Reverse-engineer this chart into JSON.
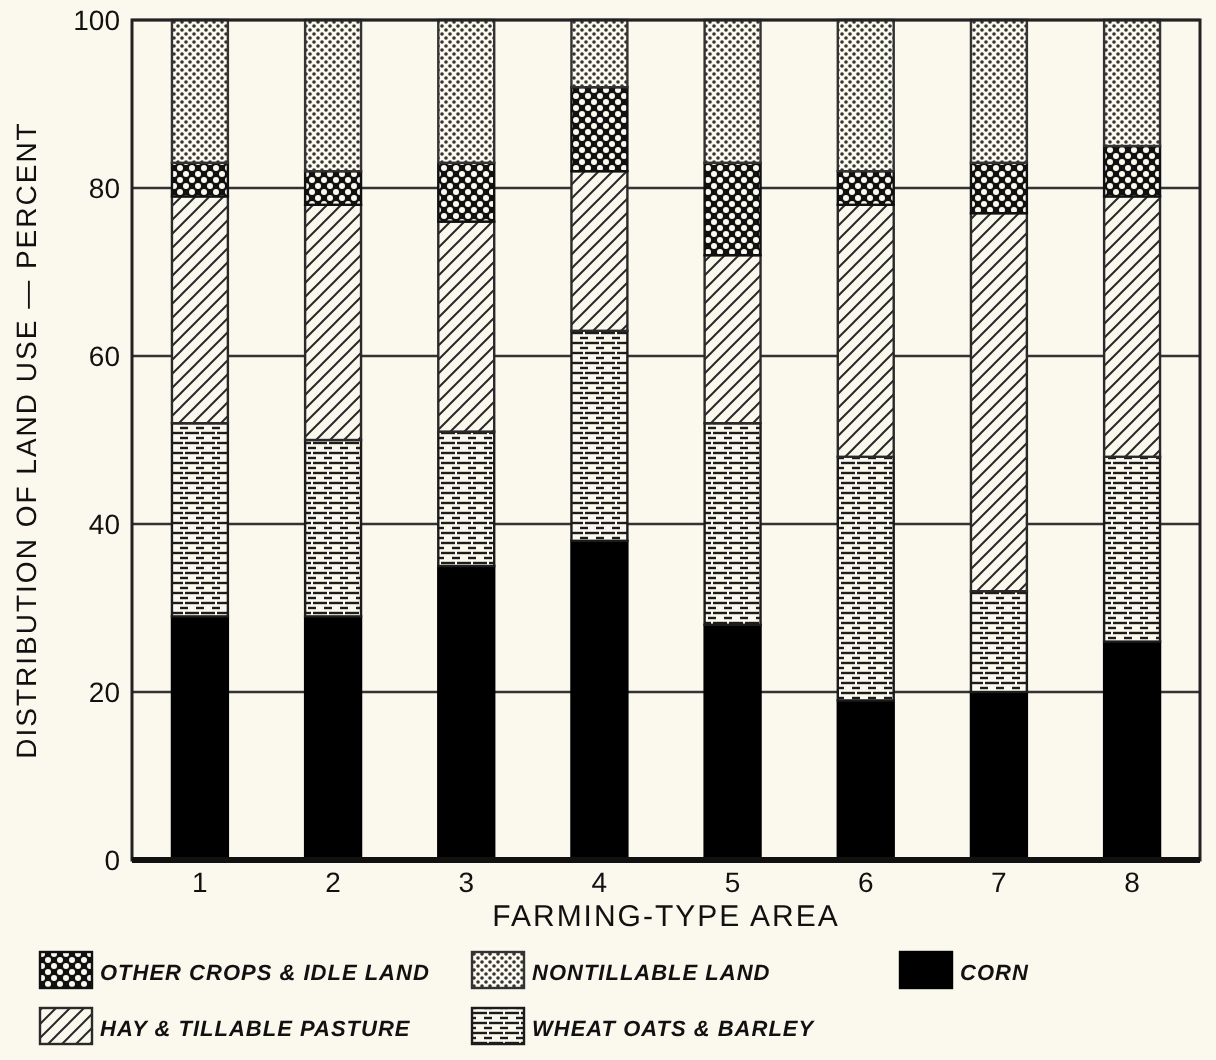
{
  "chart_data": {
    "type": "bar",
    "stacked": true,
    "xlabel": "FARMING-TYPE AREA",
    "ylabel": "DISTRIBUTION OF LAND USE — PERCENT",
    "categories": [
      "1",
      "2",
      "3",
      "4",
      "5",
      "6",
      "7",
      "8"
    ],
    "series": [
      {
        "name": "CORN",
        "color": "#000000",
        "values": [
          29,
          29,
          35,
          38,
          28,
          19,
          20,
          26
        ]
      },
      {
        "name": "WHEAT OATS & BARLEY",
        "color": "#1c1c1c",
        "values": [
          23,
          21,
          16,
          25,
          24,
          29,
          12,
          22
        ]
      },
      {
        "name": "HAY & TILLABLE PASTURE",
        "color": "#2a2a2a",
        "values": [
          27,
          28,
          25,
          19,
          20,
          30,
          45,
          31
        ]
      },
      {
        "name": "OTHER CROPS & IDLE LAND",
        "color": "#111111",
        "values": [
          4,
          4,
          7,
          10,
          11,
          4,
          6,
          6
        ]
      },
      {
        "name": "NONTILLABLE LAND",
        "color": "#333333",
        "values": [
          17,
          18,
          17,
          8,
          17,
          18,
          17,
          15
        ]
      }
    ],
    "ylim": [
      0,
      100
    ],
    "yticks": [
      0,
      20,
      40,
      60,
      80,
      100
    ],
    "grid": "y",
    "legend": "bottom"
  }
}
